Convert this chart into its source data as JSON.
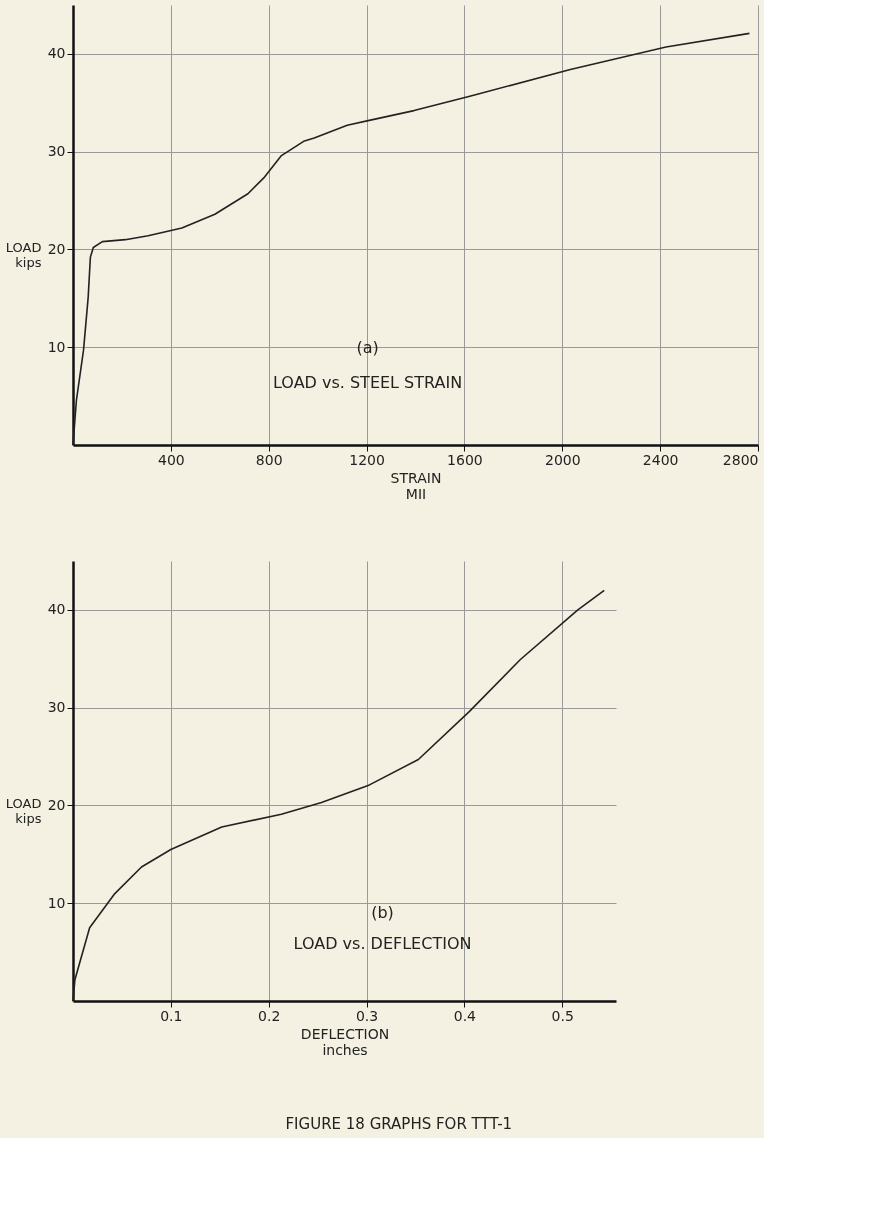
{
  "chart_data": [
    {
      "type": "line",
      "xlabel": "STRAIN\nMII",
      "ylabel": "LOAD\nkips",
      "annotations": [
        "(a)",
        "LOAD vs. STEEL STRAIN"
      ],
      "x": [
        0,
        14,
        43,
        62,
        71,
        83,
        120,
        214,
        307,
        445,
        580,
        715,
        783,
        852,
        946,
        986,
        1121,
        1211,
        1394,
        1626,
        2033,
        2424,
        2765
      ],
      "series": [
        {
          "color": "#222222",
          "values": [
            0,
            4.6,
            9.7,
            15.1,
            19.2,
            20.2,
            20.8,
            21.0,
            21.4,
            22.2,
            23.6,
            25.7,
            27.4,
            29.6,
            31.1,
            31.4,
            32.7,
            33.2,
            34.2,
            35.7,
            38.4,
            40.7,
            42.1
          ]
        }
      ],
      "xlim": [
        0,
        2800
      ],
      "ylim": [
        0,
        45
      ],
      "xticks": [
        400,
        800,
        1200,
        1600,
        2000,
        2400,
        2800
      ],
      "yticks": [
        10,
        20,
        30,
        40
      ],
      "grid": true,
      "legend": false,
      "line_style": "solid",
      "marker": "none"
    },
    {
      "type": "line",
      "xlabel": "DEFLECTION\ninches",
      "ylabel": "LOAD\nkips",
      "annotations": [
        "(b)",
        "LOAD vs. DEFLECTION",
        "FIGURE 18  GRAPHS FOR TTT-1"
      ],
      "x": [
        0,
        0.002,
        0.017,
        0.042,
        0.07,
        0.1,
        0.152,
        0.213,
        0.254,
        0.303,
        0.353,
        0.405,
        0.457,
        0.516,
        0.543
      ],
      "series": [
        {
          "color": "#222222",
          "values": [
            0,
            2.2,
            7.5,
            10.9,
            13.7,
            15.5,
            17.8,
            19.1,
            20.3,
            22.1,
            24.7,
            29.6,
            34.9,
            40.0,
            42.0
          ]
        }
      ],
      "xlim": [
        0,
        0.555
      ],
      "ylim": [
        0,
        45
      ],
      "xticks": [
        0.1,
        0.2,
        0.3,
        0.4,
        0.5
      ],
      "yticks": [
        10,
        20,
        30,
        40
      ],
      "grid": true,
      "legend": false,
      "line_style": "solid",
      "marker": "none"
    }
  ]
}
